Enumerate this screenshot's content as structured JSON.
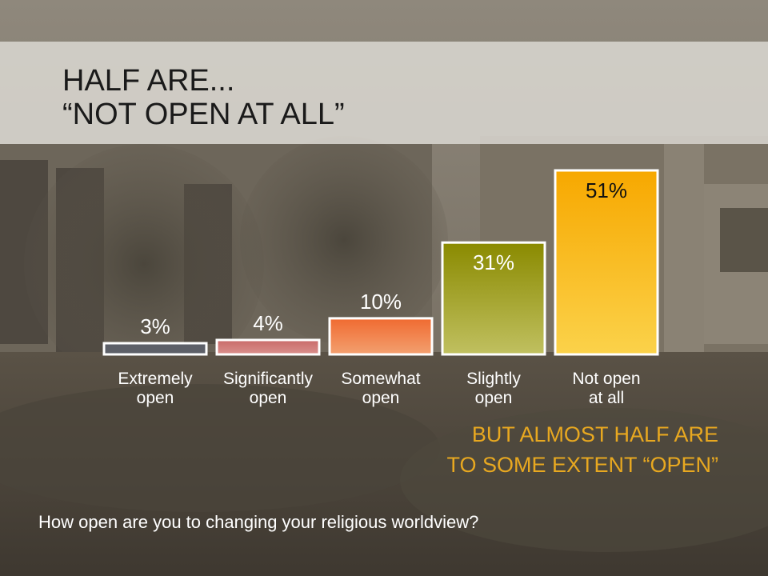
{
  "slide": {
    "title_line1": "HALF ARE...",
    "title_line2": "“NOT OPEN AT ALL”",
    "callout_line1": "BUT ALMOST HALF ARE",
    "callout_line2": "TO SOME EXTENT “OPEN”",
    "question": "How open are you to changing your religious worldview?"
  },
  "colors": {
    "callout": "#e8a820",
    "background": "#5a5246"
  },
  "chart_data": {
    "type": "bar",
    "categories": [
      [
        "Extremely",
        "open"
      ],
      [
        "Significantly",
        "open"
      ],
      [
        "Somewhat",
        "open"
      ],
      [
        "Slightly",
        "open"
      ],
      [
        "Not open",
        "at all"
      ]
    ],
    "values": [
      3,
      4,
      10,
      31,
      51
    ],
    "value_labels": [
      "3%",
      "4%",
      "10%",
      "31%",
      "51%"
    ],
    "value_label_placement": [
      "above",
      "above",
      "above",
      "inside",
      "inside"
    ],
    "value_label_colors": [
      "#ffffff",
      "#ffffff",
      "#ffffff",
      "#ffffff",
      "#111111"
    ],
    "bar_colors": [
      [
        "#5d6068",
        "#5d6068"
      ],
      [
        "#c96a6a",
        "#d9908c"
      ],
      [
        "#f06a30",
        "#f3a070"
      ],
      [
        "#8a8a00",
        "#c0c060"
      ],
      [
        "#f7a800",
        "#fbd24a"
      ]
    ],
    "unit": "%",
    "ylim": [
      0,
      51
    ],
    "title": "",
    "xlabel": "",
    "ylabel": "",
    "grid": false,
    "legend": "none"
  }
}
